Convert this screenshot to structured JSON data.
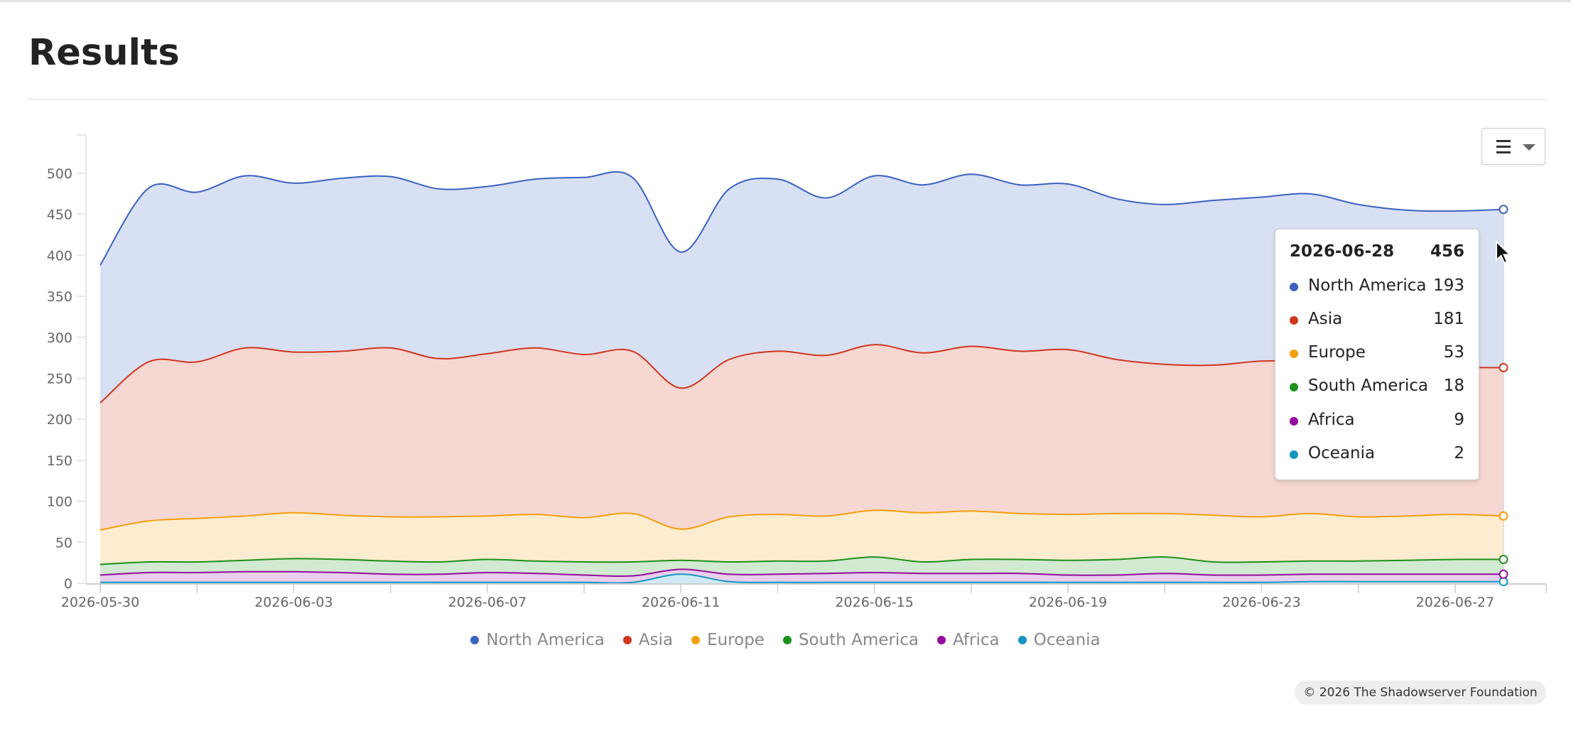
{
  "page": {
    "title": "Results",
    "copyright": "© 2026 The Shadowserver Foundation"
  },
  "colors": {
    "North America": "#3b62c1",
    "Asia": "#d1361e",
    "Europe": "#f59f0f",
    "South America": "#1c911c",
    "Africa": "#930d9e",
    "Oceania": "#1496c3"
  },
  "tooltip": {
    "date": "2026-06-28",
    "total": "456",
    "rows": [
      {
        "name": "North America",
        "value": "193"
      },
      {
        "name": "Asia",
        "value": "181"
      },
      {
        "name": "Europe",
        "value": "53"
      },
      {
        "name": "South America",
        "value": "18"
      },
      {
        "name": "Africa",
        "value": "9"
      },
      {
        "name": "Oceania",
        "value": "2"
      }
    ]
  },
  "chart_data": {
    "type": "area",
    "stacked": true,
    "title": "",
    "xlabel": "",
    "ylabel": "",
    "ylim": [
      0,
      550
    ],
    "yticks": [
      0,
      50,
      100,
      150,
      200,
      250,
      300,
      350,
      400,
      450,
      500
    ],
    "xtick_labels": [
      "2026-05-30",
      "2026-06-03",
      "2026-06-07",
      "2026-06-11",
      "2026-06-15",
      "2026-06-19",
      "2026-06-23",
      "2026-06-27"
    ],
    "grid": false,
    "legend_position": "bottom",
    "x": [
      "2026-05-30",
      "2026-05-31",
      "2026-06-01",
      "2026-06-02",
      "2026-06-03",
      "2026-06-04",
      "2026-06-05",
      "2026-06-06",
      "2026-06-07",
      "2026-06-08",
      "2026-06-09",
      "2026-06-10",
      "2026-06-11",
      "2026-06-12",
      "2026-06-13",
      "2026-06-14",
      "2026-06-15",
      "2026-06-16",
      "2026-06-17",
      "2026-06-18",
      "2026-06-19",
      "2026-06-20",
      "2026-06-21",
      "2026-06-22",
      "2026-06-23",
      "2026-06-24",
      "2026-06-25",
      "2026-06-26",
      "2026-06-27",
      "2026-06-28"
    ],
    "series": [
      {
        "name": "Oceania",
        "values": [
          1,
          1,
          1,
          1,
          1,
          1,
          1,
          1,
          1,
          1,
          1,
          1,
          11,
          2,
          1,
          1,
          1,
          1,
          1,
          1,
          1,
          1,
          1,
          1,
          1,
          2,
          2,
          2,
          2,
          2
        ]
      },
      {
        "name": "Africa",
        "values": [
          9,
          12,
          12,
          13,
          13,
          12,
          10,
          10,
          12,
          11,
          9,
          8,
          6,
          9,
          10,
          11,
          12,
          11,
          11,
          11,
          9,
          9,
          11,
          9,
          9,
          9,
          9,
          9,
          9,
          9
        ]
      },
      {
        "name": "South America",
        "values": [
          13,
          13,
          13,
          14,
          16,
          16,
          16,
          15,
          16,
          15,
          16,
          17,
          11,
          15,
          16,
          15,
          19,
          14,
          17,
          17,
          18,
          19,
          20,
          16,
          16,
          16,
          16,
          17,
          18,
          18
        ]
      },
      {
        "name": "Europe",
        "values": [
          42,
          50,
          53,
          54,
          56,
          54,
          54,
          55,
          53,
          57,
          54,
          59,
          38,
          55,
          57,
          55,
          57,
          60,
          59,
          56,
          56,
          56,
          53,
          57,
          55,
          58,
          54,
          54,
          55,
          53
        ]
      },
      {
        "name": "Asia",
        "values": [
          155,
          194,
          191,
          205,
          196,
          200,
          206,
          193,
          198,
          203,
          199,
          198,
          172,
          192,
          199,
          196,
          202,
          195,
          201,
          198,
          201,
          188,
          182,
          183,
          190,
          186,
          189,
          179,
          179,
          181
        ]
      },
      {
        "name": "North America",
        "values": [
          168,
          212,
          207,
          210,
          206,
          211,
          209,
          207,
          204,
          206,
          216,
          212,
          166,
          208,
          210,
          192,
          206,
          205,
          210,
          203,
          202,
          196,
          195,
          201,
          200,
          204,
          192,
          194,
          191,
          193
        ]
      }
    ]
  }
}
